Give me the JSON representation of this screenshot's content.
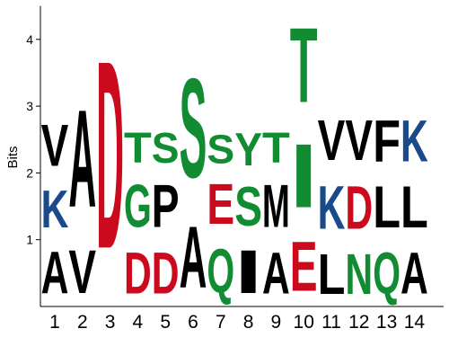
{
  "chart_data": {
    "type": "sequence-logo",
    "ylabel": "Bits",
    "ylim": [
      0,
      4.5
    ],
    "y_ticks": [
      1,
      2,
      3,
      4
    ],
    "grid": false,
    "colors": {
      "black": "#000000",
      "red": "#cc0a1e",
      "green": "#128c33",
      "blue": "#1a4a8a"
    },
    "positions": [
      {
        "label": "1",
        "stack": [
          {
            "letter": "A",
            "height": 1.01,
            "color": "black"
          },
          {
            "letter": "K",
            "height": 0.9,
            "color": "blue"
          },
          {
            "letter": "V",
            "height": 0.99,
            "color": "black"
          }
        ]
      },
      {
        "label": "2",
        "stack": [
          {
            "letter": "V",
            "height": 1.04,
            "color": "black"
          },
          {
            "letter": "A",
            "height": 2.33,
            "color": "black"
          }
        ]
      },
      {
        "label": "3",
        "stack": [
          {
            "letter": "D",
            "height": 4.5,
            "color": "red"
          }
        ]
      },
      {
        "label": "4",
        "stack": [
          {
            "letter": "D",
            "height": 0.99,
            "color": "red"
          },
          {
            "letter": "G",
            "height": 1.02,
            "color": "green"
          },
          {
            "letter": "T",
            "height": 0.72,
            "color": "green"
          }
        ]
      },
      {
        "label": "5",
        "stack": [
          {
            "letter": "D",
            "height": 0.99,
            "color": "red"
          },
          {
            "letter": "P",
            "height": 1.02,
            "color": "black"
          },
          {
            "letter": "S",
            "height": 0.72,
            "color": "green"
          }
        ]
      },
      {
        "label": "6",
        "stack": [
          {
            "letter": "A",
            "height": 1.47,
            "color": "black"
          },
          {
            "letter": "S",
            "height": 2.38,
            "color": "green"
          }
        ]
      },
      {
        "label": "7",
        "stack": [
          {
            "letter": "Q",
            "height": 1.05,
            "color": "green"
          },
          {
            "letter": "E",
            "height": 0.96,
            "color": "red"
          },
          {
            "letter": "S",
            "height": 0.69,
            "color": "green"
          }
        ]
      },
      {
        "label": "8",
        "stack": [
          {
            "letter": "I",
            "height": 1.03,
            "color": "black"
          },
          {
            "letter": "S",
            "height": 0.93,
            "color": "green"
          },
          {
            "letter": "Y",
            "height": 0.78,
            "color": "green"
          }
        ]
      },
      {
        "label": "9",
        "stack": [
          {
            "letter": "A",
            "height": 0.99,
            "color": "black"
          },
          {
            "letter": "M",
            "height": 1.02,
            "color": "black"
          },
          {
            "letter": "T",
            "height": 0.72,
            "color": "green"
          }
        ]
      },
      {
        "label": "10",
        "stack": [
          {
            "letter": "E",
            "height": 1.19,
            "color": "red"
          },
          {
            "letter": "I",
            "height": 1.52,
            "color": "green"
          },
          {
            "letter": "T",
            "height": 1.79,
            "color": "green"
          }
        ]
      },
      {
        "label": "11",
        "stack": [
          {
            "letter": "L",
            "height": 0.96,
            "color": "black"
          },
          {
            "letter": "K",
            "height": 1.04,
            "color": "blue"
          },
          {
            "letter": "V",
            "height": 0.97,
            "color": "black"
          }
        ]
      },
      {
        "label": "12",
        "stack": [
          {
            "letter": "N",
            "height": 0.96,
            "color": "green"
          },
          {
            "letter": "D",
            "height": 1.04,
            "color": "red"
          },
          {
            "letter": "V",
            "height": 0.97,
            "color": "black"
          }
        ]
      },
      {
        "label": "13",
        "stack": [
          {
            "letter": "Q",
            "height": 0.99,
            "color": "green"
          },
          {
            "letter": "L",
            "height": 0.99,
            "color": "black"
          },
          {
            "letter": "F",
            "height": 0.99,
            "color": "black"
          }
        ]
      },
      {
        "label": "14",
        "stack": [
          {
            "letter": "A",
            "height": 0.99,
            "color": "black"
          },
          {
            "letter": "L",
            "height": 0.99,
            "color": "black"
          },
          {
            "letter": "K",
            "height": 0.99,
            "color": "blue"
          }
        ]
      }
    ]
  }
}
